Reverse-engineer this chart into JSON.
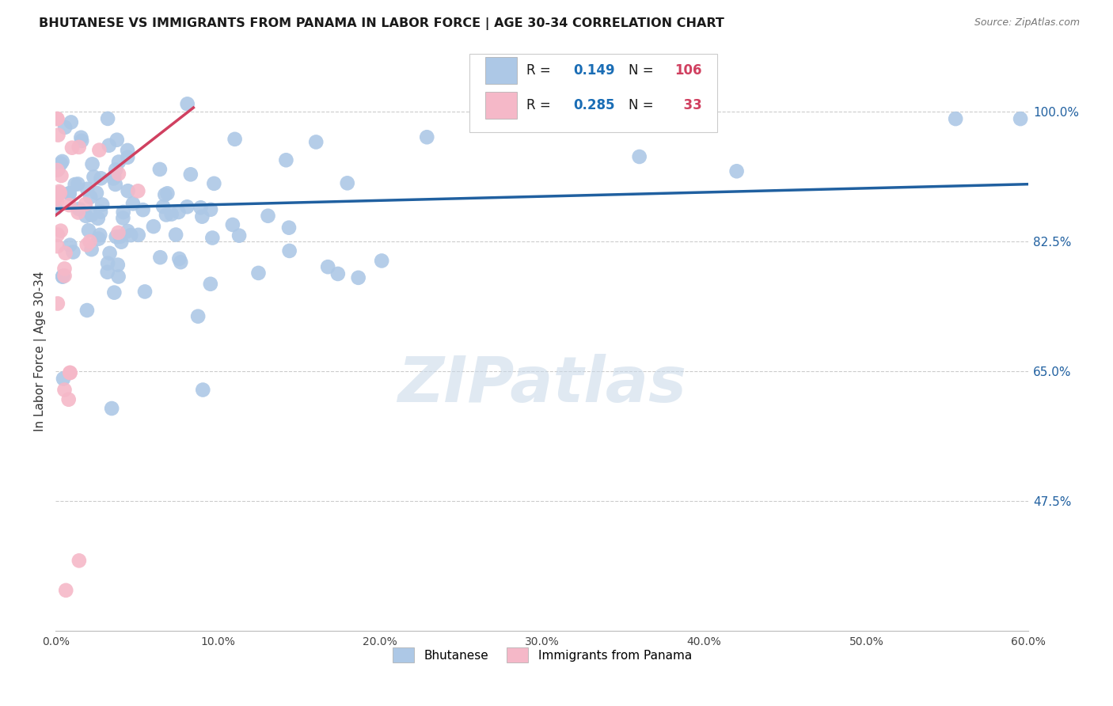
{
  "title": "BHUTANESE VS IMMIGRANTS FROM PANAMA IN LABOR FORCE | AGE 30-34 CORRELATION CHART",
  "source": "Source: ZipAtlas.com",
  "ylabel": "In Labor Force | Age 30-34",
  "right_ytick_vals": [
    47.5,
    65.0,
    82.5,
    100.0
  ],
  "xmin": 0.0,
  "xmax": 0.6,
  "ymin": 0.3,
  "ymax": 1.055,
  "blue_R": 0.149,
  "blue_N": 106,
  "pink_R": 0.285,
  "pink_N": 33,
  "blue_color": "#adc8e6",
  "blue_edge_color": "#5a9fd4",
  "blue_line_color": "#2060a0",
  "pink_color": "#f5b8c8",
  "pink_edge_color": "#e07090",
  "pink_line_color": "#d04060",
  "legend_text_color": "#1a1a1a",
  "legend_val_color": "#1a6db5",
  "legend_n_color": "#d04060",
  "grid_color": "#cccccc",
  "bg_color": "#ffffff",
  "watermark": "ZIPatlas",
  "blue_trend_x0": 0.0,
  "blue_trend_x1": 0.6,
  "blue_trend_y0": 0.869,
  "blue_trend_y1": 0.902,
  "pink_trend_x0": 0.0,
  "pink_trend_x1": 0.085,
  "pink_trend_y0": 0.86,
  "pink_trend_y1": 1.005
}
